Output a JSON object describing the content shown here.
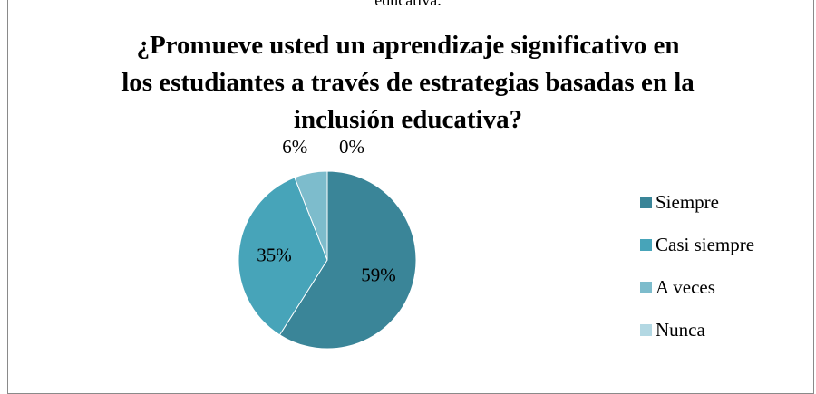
{
  "cutoff_text": "educativa.",
  "chart_data": {
    "type": "pie",
    "title": "¿Promueve usted un aprendizaje significativo en los estudiantes a través de estrategias basadas en la inclusión educativa?",
    "title_lines": [
      "¿Promueve usted un aprendizaje significativo en",
      "los estudiantes a través de estrategias basadas en la",
      "inclusión educativa?"
    ],
    "categories": [
      "Siempre",
      "Casi siempre",
      "A veces",
      "Nunca"
    ],
    "values": [
      59,
      35,
      6,
      0
    ],
    "data_labels": [
      "59%",
      "35%",
      "6%",
      "0%"
    ],
    "colors": [
      "#3a8598",
      "#47a4b9",
      "#7dbccc",
      "#b3d8e3"
    ],
    "legend_position": "right"
  }
}
